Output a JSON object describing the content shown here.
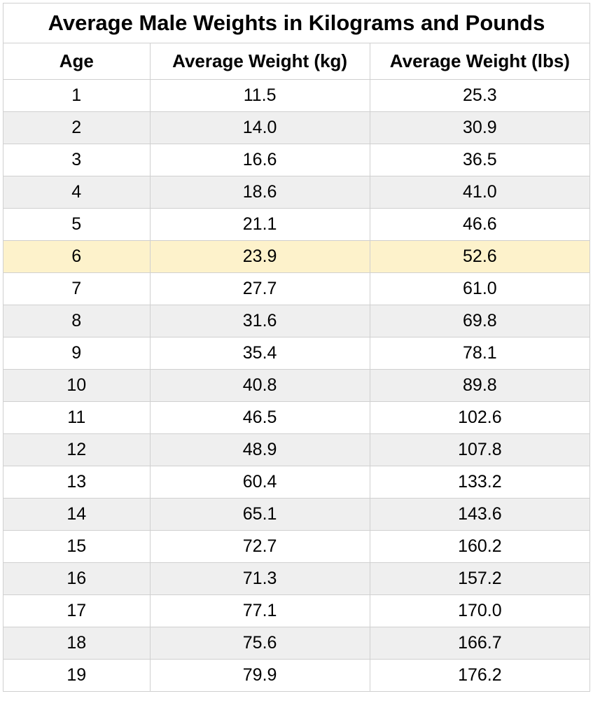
{
  "table": {
    "title": "Average Male Weights in Kilograms and Pounds",
    "columns": [
      "Age",
      "Average Weight (kg)",
      "Average Weight (lbs)"
    ],
    "highlight_row_index": 5,
    "colors": {
      "row_white": "#ffffff",
      "row_gray": "#efefef",
      "row_highlight": "#fdf2cb",
      "border": "#d0d0d0",
      "text": "#000000"
    },
    "font": {
      "title_size": 31,
      "header_size": 26,
      "data_size": 25,
      "title_weight": "bold",
      "header_weight": "bold"
    },
    "rows": [
      {
        "age": "1",
        "kg": "11.5",
        "lbs": "25.3"
      },
      {
        "age": "2",
        "kg": "14.0",
        "lbs": "30.9"
      },
      {
        "age": "3",
        "kg": "16.6",
        "lbs": "36.5"
      },
      {
        "age": "4",
        "kg": "18.6",
        "lbs": "41.0"
      },
      {
        "age": "5",
        "kg": "21.1",
        "lbs": "46.6"
      },
      {
        "age": "6",
        "kg": "23.9",
        "lbs": "52.6"
      },
      {
        "age": "7",
        "kg": "27.7",
        "lbs": "61.0"
      },
      {
        "age": "8",
        "kg": "31.6",
        "lbs": "69.8"
      },
      {
        "age": "9",
        "kg": "35.4",
        "lbs": "78.1"
      },
      {
        "age": "10",
        "kg": "40.8",
        "lbs": "89.8"
      },
      {
        "age": "11",
        "kg": "46.5",
        "lbs": "102.6"
      },
      {
        "age": "12",
        "kg": "48.9",
        "lbs": "107.8"
      },
      {
        "age": "13",
        "kg": "60.4",
        "lbs": "133.2"
      },
      {
        "age": "14",
        "kg": "65.1",
        "lbs": "143.6"
      },
      {
        "age": "15",
        "kg": "72.7",
        "lbs": "160.2"
      },
      {
        "age": "16",
        "kg": "71.3",
        "lbs": "157.2"
      },
      {
        "age": "17",
        "kg": "77.1",
        "lbs": "170.0"
      },
      {
        "age": "18",
        "kg": "75.6",
        "lbs": "166.7"
      },
      {
        "age": "19",
        "kg": "79.9",
        "lbs": "176.2"
      }
    ]
  }
}
